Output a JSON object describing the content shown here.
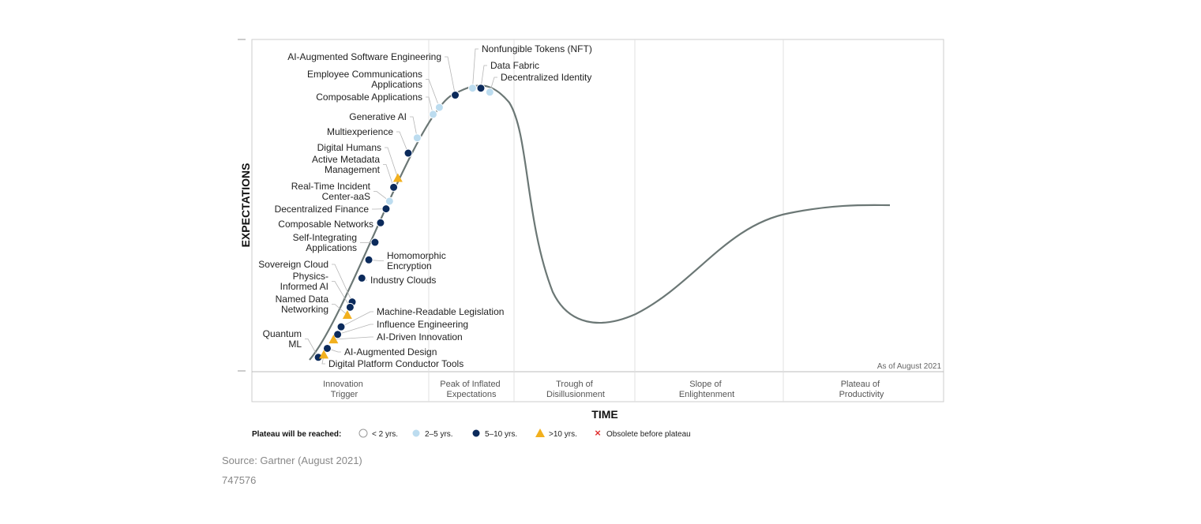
{
  "chart_data": {
    "type": "scatter",
    "xlabel": "TIME",
    "ylabel": "EXPECTATIONS",
    "as_of": "As of August 2021",
    "phases": [
      [
        "Innovation",
        "Trigger"
      ],
      [
        "Peak of Inflated",
        "Expectations"
      ],
      [
        "Trough of",
        "Disillusionment"
      ],
      [
        "Slope of",
        "Enlightenment"
      ],
      [
        "Plateau of",
        "Productivity"
      ]
    ],
    "legend": {
      "title": "Plateau will be reached:",
      "items": [
        {
          "key": "lt2",
          "label": "< 2 yrs.",
          "shape": "circle",
          "color": "#ffffff"
        },
        {
          "key": "2to5",
          "label": "2–5 yrs.",
          "shape": "circle",
          "color": "#bcdcef"
        },
        {
          "key": "5to10",
          "label": "5–10 yrs.",
          "shape": "circle",
          "color": "#0b2a5b"
        },
        {
          "key": "gt10",
          "label": ">10 yrs.",
          "shape": "triangle",
          "color": "#f2b01e"
        },
        {
          "key": "obsolete",
          "label": "Obsolete before plateau",
          "shape": "x",
          "color": "#e03030"
        }
      ]
    },
    "points": [
      {
        "name": [
          "AI-Augmented Software Engineering"
        ],
        "x": 0.294,
        "y": 0.832,
        "category": "5to10"
      },
      {
        "name": [
          "Nonfungible Tokens (NFT)"
        ],
        "x": 0.319,
        "y": 0.853,
        "category": "2to5"
      },
      {
        "name": [
          "Data Fabric"
        ],
        "x": 0.331,
        "y": 0.853,
        "category": "5to10"
      },
      {
        "name": [
          "Decentralized Identity"
        ],
        "x": 0.344,
        "y": 0.841,
        "category": "2to5"
      },
      {
        "name": [
          "Employee Communications",
          "Applications"
        ],
        "x": 0.271,
        "y": 0.795,
        "category": "2to5"
      },
      {
        "name": [
          "Composable Applications"
        ],
        "x": 0.262,
        "y": 0.774,
        "category": "2to5"
      },
      {
        "name": [
          "Generative AI"
        ],
        "x": 0.239,
        "y": 0.703,
        "category": "2to5"
      },
      {
        "name": [
          "Multiexperience"
        ],
        "x": 0.226,
        "y": 0.657,
        "category": "5to10"
      },
      {
        "name": [
          "Digital Humans"
        ],
        "x": 0.211,
        "y": 0.582,
        "category": "gt10"
      },
      {
        "name": [
          "Active Metadata",
          "Management"
        ],
        "x": 0.205,
        "y": 0.554,
        "category": "5to10"
      },
      {
        "name": [
          "Real-Time Incident",
          "Center-aaS"
        ],
        "x": 0.199,
        "y": 0.512,
        "category": "2to5"
      },
      {
        "name": [
          "Decentralized Finance"
        ],
        "x": 0.194,
        "y": 0.489,
        "category": "5to10"
      },
      {
        "name": [
          "Composable Networks"
        ],
        "x": 0.186,
        "y": 0.447,
        "category": "5to10"
      },
      {
        "name": [
          "Self-Integrating",
          "Applications"
        ],
        "x": 0.178,
        "y": 0.388,
        "category": "5to10"
      },
      {
        "name": [
          "Homomorphic",
          "Encryption"
        ],
        "x": 0.169,
        "y": 0.335,
        "category": "5to10"
      },
      {
        "name": [
          "Industry Clouds"
        ],
        "x": 0.159,
        "y": 0.28,
        "category": "5to10"
      },
      {
        "name": [
          "Sovereign Cloud"
        ],
        "x": 0.145,
        "y": 0.208,
        "category": "5to10"
      },
      {
        "name": [
          "Physics-",
          "Informed AI"
        ],
        "x": 0.142,
        "y": 0.192,
        "category": "5to10"
      },
      {
        "name": [
          "Named Data",
          "Networking"
        ],
        "x": 0.138,
        "y": 0.169,
        "category": "gt10"
      },
      {
        "name": [
          "Machine-Readable Legislation"
        ],
        "x": 0.129,
        "y": 0.133,
        "category": "5to10"
      },
      {
        "name": [
          "Influence Engineering"
        ],
        "x": 0.124,
        "y": 0.11,
        "category": "5to10"
      },
      {
        "name": [
          "AI-Driven Innovation"
        ],
        "x": 0.118,
        "y": 0.095,
        "category": "gt10"
      },
      {
        "name": [
          "AI-Augmented Design"
        ],
        "x": 0.109,
        "y": 0.068,
        "category": "5to10"
      },
      {
        "name": [
          "Quantum",
          "ML"
        ],
        "x": 0.096,
        "y": 0.041,
        "category": "5to10"
      },
      {
        "name": [
          "Digital Platform Conductor Tools"
        ],
        "x": 0.104,
        "y": 0.049,
        "category": "gt10"
      }
    ]
  },
  "source": "Source: Gartner (August 2021)",
  "doc_id": "747576"
}
